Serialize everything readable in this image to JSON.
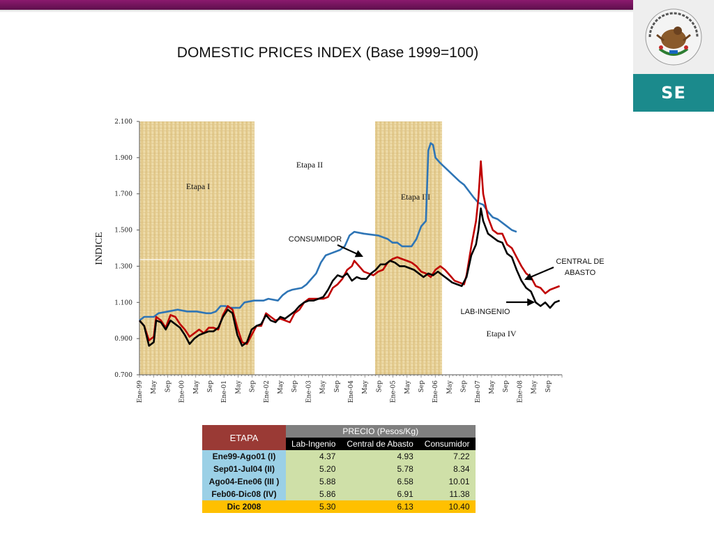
{
  "title": "DOMESTIC PRICES INDEX (Base 1999=100)",
  "logo": {
    "text": "SE",
    "seal_text": "ESTADOS UNIDOS MEXICANOS",
    "bg_color": "#1b8a8c"
  },
  "chart_data": {
    "type": "line",
    "ylabel": "INDICE",
    "ylim": [
      0.7,
      2.1
    ],
    "yticks": [
      "0.700",
      "0.900",
      "1.100",
      "1.300",
      "1.500",
      "1.700",
      "1.900",
      "2.100"
    ],
    "xticks": [
      "Ene-99",
      "May",
      "Sep",
      "Ene-00",
      "May",
      "Sep",
      "Ene-01",
      "May",
      "Sep",
      "Ene-02",
      "May",
      "Sep",
      "Ene-03",
      "May",
      "Sep",
      "Ene-04",
      "May",
      "Sep",
      "Ene-05",
      "May",
      "Sep",
      "Ene-06",
      "May",
      "Sep",
      "Ene-07",
      "May",
      "Sep",
      "Ene-08",
      "May",
      "Sep"
    ],
    "stages": [
      {
        "label": "Etapa I",
        "from": 0,
        "to": 32
      },
      {
        "label": "Etapa II",
        "from": 32,
        "to": 67
      },
      {
        "label": "Etapa III",
        "from": 67,
        "to": 84
      },
      {
        "label": "Etapa IV",
        "from": 84,
        "to": 119
      }
    ],
    "series": [
      {
        "name": "CONSUMIDOR",
        "color": "#2e75b6",
        "points": [
          [
            0,
            1.0
          ],
          [
            2,
            1.02
          ],
          [
            6,
            1.02
          ],
          [
            8,
            1.04
          ],
          [
            12,
            1.05
          ],
          [
            16,
            1.06
          ],
          [
            20,
            1.05
          ],
          [
            24,
            1.05
          ],
          [
            28,
            1.04
          ],
          [
            30,
            1.04
          ],
          [
            32,
            1.05
          ],
          [
            34,
            1.08
          ],
          [
            36,
            1.08
          ],
          [
            38,
            1.07
          ],
          [
            42,
            1.07
          ],
          [
            44,
            1.1
          ],
          [
            48,
            1.11
          ],
          [
            52,
            1.11
          ],
          [
            54,
            1.12
          ],
          [
            58,
            1.11
          ],
          [
            60,
            1.14
          ],
          [
            62,
            1.16
          ],
          [
            64,
            1.17
          ],
          [
            68,
            1.18
          ],
          [
            70,
            1.2
          ],
          [
            72,
            1.23
          ],
          [
            74,
            1.26
          ],
          [
            76,
            1.32
          ],
          [
            78,
            1.36
          ],
          [
            80,
            1.37
          ],
          [
            84,
            1.39
          ],
          [
            86,
            1.41
          ],
          [
            88,
            1.47
          ],
          [
            90,
            1.49
          ],
          [
            94,
            1.48
          ],
          [
            100,
            1.47
          ],
          [
            104,
            1.45
          ],
          [
            106,
            1.43
          ],
          [
            108,
            1.43
          ],
          [
            110,
            1.41
          ],
          [
            114,
            1.41
          ],
          [
            116,
            1.45
          ],
          [
            118,
            1.52
          ],
          [
            120,
            1.55
          ],
          [
            121,
            1.94
          ],
          [
            122,
            1.98
          ],
          [
            123,
            1.97
          ],
          [
            124,
            1.9
          ],
          [
            126,
            1.87
          ],
          [
            130,
            1.82
          ],
          [
            134,
            1.77
          ],
          [
            136,
            1.75
          ],
          [
            140,
            1.68
          ],
          [
            142,
            1.65
          ],
          [
            144,
            1.64
          ],
          [
            146,
            1.6
          ],
          [
            148,
            1.57
          ],
          [
            150,
            1.56
          ],
          [
            152,
            1.54
          ],
          [
            154,
            1.52
          ],
          [
            156,
            1.5
          ],
          [
            158,
            1.49
          ]
        ]
      },
      {
        "name": "CENTRAL DE ABASTO",
        "color": "#c00000",
        "points": [
          [
            0,
            1.0
          ],
          [
            2,
            0.97
          ],
          [
            4,
            0.89
          ],
          [
            6,
            0.91
          ],
          [
            7,
            1.02
          ],
          [
            9,
            1.0
          ],
          [
            11,
            0.96
          ],
          [
            13,
            1.03
          ],
          [
            15,
            1.02
          ],
          [
            17,
            0.98
          ],
          [
            19,
            0.95
          ],
          [
            21,
            0.91
          ],
          [
            23,
            0.93
          ],
          [
            25,
            0.95
          ],
          [
            27,
            0.93
          ],
          [
            29,
            0.96
          ],
          [
            31,
            0.96
          ],
          [
            33,
            0.95
          ],
          [
            35,
            1.03
          ],
          [
            37,
            1.08
          ],
          [
            39,
            1.06
          ],
          [
            41,
            0.96
          ],
          [
            43,
            0.88
          ],
          [
            45,
            0.87
          ],
          [
            47,
            0.92
          ],
          [
            49,
            0.97
          ],
          [
            51,
            0.97
          ],
          [
            53,
            1.04
          ],
          [
            55,
            1.02
          ],
          [
            57,
            1.0
          ],
          [
            59,
            1.01
          ],
          [
            61,
            1.0
          ],
          [
            63,
            0.99
          ],
          [
            65,
            1.04
          ],
          [
            67,
            1.06
          ],
          [
            69,
            1.1
          ],
          [
            71,
            1.12
          ],
          [
            73,
            1.12
          ],
          [
            75,
            1.12
          ],
          [
            77,
            1.12
          ],
          [
            79,
            1.13
          ],
          [
            81,
            1.18
          ],
          [
            83,
            1.2
          ],
          [
            85,
            1.23
          ],
          [
            87,
            1.28
          ],
          [
            89,
            1.3
          ],
          [
            90,
            1.33
          ],
          [
            92,
            1.3
          ],
          [
            94,
            1.27
          ],
          [
            96,
            1.26
          ],
          [
            98,
            1.25
          ],
          [
            100,
            1.27
          ],
          [
            102,
            1.28
          ],
          [
            104,
            1.32
          ],
          [
            106,
            1.34
          ],
          [
            108,
            1.35
          ],
          [
            110,
            1.34
          ],
          [
            112,
            1.33
          ],
          [
            114,
            1.32
          ],
          [
            116,
            1.3
          ],
          [
            118,
            1.27
          ],
          [
            120,
            1.26
          ],
          [
            122,
            1.24
          ],
          [
            124,
            1.28
          ],
          [
            126,
            1.3
          ],
          [
            128,
            1.28
          ],
          [
            130,
            1.25
          ],
          [
            132,
            1.22
          ],
          [
            134,
            1.21
          ],
          [
            136,
            1.2
          ],
          [
            137,
            1.25
          ],
          [
            139,
            1.41
          ],
          [
            141,
            1.55
          ],
          [
            142,
            1.68
          ],
          [
            143,
            1.88
          ],
          [
            144,
            1.7
          ],
          [
            146,
            1.57
          ],
          [
            148,
            1.5
          ],
          [
            150,
            1.48
          ],
          [
            152,
            1.48
          ],
          [
            154,
            1.42
          ],
          [
            156,
            1.4
          ],
          [
            158,
            1.35
          ],
          [
            160,
            1.3
          ],
          [
            162,
            1.26
          ],
          [
            164,
            1.24
          ],
          [
            166,
            1.19
          ],
          [
            168,
            1.18
          ],
          [
            170,
            1.15
          ],
          [
            172,
            1.17
          ],
          [
            174,
            1.18
          ],
          [
            176,
            1.19
          ]
        ]
      },
      {
        "name": "LAB-INGENIO",
        "color": "#000000",
        "points": [
          [
            0,
            1.0
          ],
          [
            2,
            0.97
          ],
          [
            4,
            0.86
          ],
          [
            6,
            0.88
          ],
          [
            7,
            1.0
          ],
          [
            9,
            0.99
          ],
          [
            11,
            0.95
          ],
          [
            13,
            1.0
          ],
          [
            15,
            0.98
          ],
          [
            17,
            0.96
          ],
          [
            19,
            0.92
          ],
          [
            21,
            0.87
          ],
          [
            23,
            0.9
          ],
          [
            25,
            0.92
          ],
          [
            27,
            0.93
          ],
          [
            29,
            0.94
          ],
          [
            31,
            0.94
          ],
          [
            33,
            0.96
          ],
          [
            35,
            1.02
          ],
          [
            37,
            1.06
          ],
          [
            39,
            1.04
          ],
          [
            41,
            0.92
          ],
          [
            43,
            0.86
          ],
          [
            45,
            0.88
          ],
          [
            47,
            0.95
          ],
          [
            49,
            0.97
          ],
          [
            51,
            0.98
          ],
          [
            53,
            1.03
          ],
          [
            55,
            1.0
          ],
          [
            57,
            0.99
          ],
          [
            59,
            1.02
          ],
          [
            61,
            1.01
          ],
          [
            63,
            1.03
          ],
          [
            65,
            1.05
          ],
          [
            67,
            1.08
          ],
          [
            69,
            1.1
          ],
          [
            71,
            1.11
          ],
          [
            73,
            1.11
          ],
          [
            75,
            1.12
          ],
          [
            77,
            1.13
          ],
          [
            79,
            1.17
          ],
          [
            81,
            1.22
          ],
          [
            83,
            1.25
          ],
          [
            85,
            1.24
          ],
          [
            87,
            1.26
          ],
          [
            89,
            1.22
          ],
          [
            91,
            1.24
          ],
          [
            93,
            1.23
          ],
          [
            95,
            1.23
          ],
          [
            97,
            1.26
          ],
          [
            99,
            1.28
          ],
          [
            101,
            1.31
          ],
          [
            103,
            1.31
          ],
          [
            105,
            1.33
          ],
          [
            107,
            1.32
          ],
          [
            109,
            1.3
          ],
          [
            111,
            1.3
          ],
          [
            113,
            1.29
          ],
          [
            115,
            1.28
          ],
          [
            117,
            1.26
          ],
          [
            119,
            1.24
          ],
          [
            121,
            1.26
          ],
          [
            123,
            1.25
          ],
          [
            125,
            1.27
          ],
          [
            127,
            1.25
          ],
          [
            129,
            1.23
          ],
          [
            131,
            1.21
          ],
          [
            133,
            1.2
          ],
          [
            135,
            1.19
          ],
          [
            137,
            1.24
          ],
          [
            139,
            1.36
          ],
          [
            141,
            1.42
          ],
          [
            142,
            1.5
          ],
          [
            143,
            1.62
          ],
          [
            144,
            1.55
          ],
          [
            146,
            1.48
          ],
          [
            148,
            1.46
          ],
          [
            150,
            1.44
          ],
          [
            152,
            1.43
          ],
          [
            154,
            1.37
          ],
          [
            156,
            1.35
          ],
          [
            158,
            1.28
          ],
          [
            160,
            1.22
          ],
          [
            162,
            1.18
          ],
          [
            164,
            1.16
          ],
          [
            166,
            1.1
          ],
          [
            168,
            1.08
          ],
          [
            170,
            1.1
          ],
          [
            172,
            1.07
          ],
          [
            174,
            1.1
          ],
          [
            176,
            1.11
          ]
        ]
      }
    ],
    "annotations": [
      {
        "text": "CONSUMIDOR",
        "target": "CONSUMIDOR"
      },
      {
        "text": "CENTRAL DE ABASTO",
        "target": "CENTRAL DE ABASTO"
      },
      {
        "text": "LAB-INGENIO",
        "target": "LAB-INGENIO"
      }
    ],
    "grid": false,
    "legend": "annotations"
  },
  "table": {
    "etapa_header": "ETAPA",
    "precio_header": "PRECIO (Pesos/Kg)",
    "columns": [
      "Lab-Ingenio",
      "Central de Abasto",
      "Consumidor"
    ],
    "rows": [
      {
        "etapa": "Ene99-Ago01 (I)",
        "values": [
          "4.37",
          "4.93",
          "7.22"
        ]
      },
      {
        "etapa": "Sep01-Jul04 (II)",
        "values": [
          "5.20",
          "5.78",
          "8.34"
        ]
      },
      {
        "etapa": "Ago04-Ene06 (III )",
        "values": [
          "5.88",
          "6.58",
          "10.01"
        ]
      },
      {
        "etapa": "Feb06-Dic08 (IV)",
        "values": [
          "5.86",
          "6.91",
          "11.38"
        ]
      },
      {
        "etapa": "Dic 2008",
        "values": [
          "5.30",
          "6.13",
          "10.40"
        ]
      }
    ]
  }
}
